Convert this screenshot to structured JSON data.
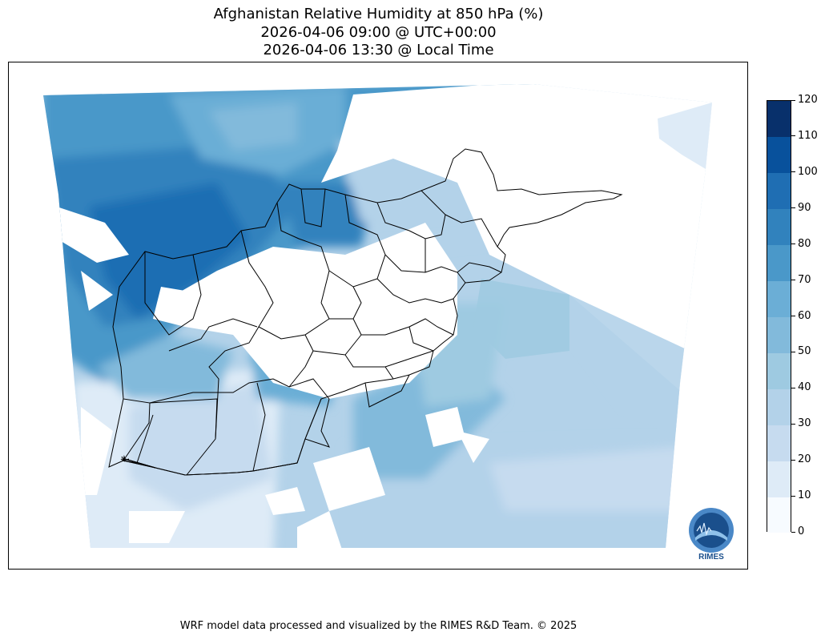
{
  "title": {
    "line1": "Afghanistan Relative Humidity at 850 hPa (%)",
    "line2": "2026-04-06 09:00 @ UTC+00:00",
    "line3": "2026-04-06 13:30 @ Local Time"
  },
  "colorbar": {
    "levels": [
      0,
      10,
      20,
      30,
      40,
      50,
      60,
      70,
      80,
      90,
      100,
      110,
      120
    ],
    "labels": [
      "0",
      "10",
      "20",
      "30",
      "40",
      "50",
      "60",
      "70",
      "80",
      "90",
      "100",
      "110",
      "120"
    ],
    "colors": [
      "#f7fbff",
      "#deebf7",
      "#c6dbef",
      "#b3d2e9",
      "#9ecae1",
      "#82badb",
      "#6baed6",
      "#4a98c9",
      "#3182bd",
      "#1f6eb3",
      "#08519c",
      "#08306b"
    ]
  },
  "logo": {
    "text": "RIMES"
  },
  "footer": "WRF model data processed and visualized by the RIMES R&D Team. © 2025"
}
